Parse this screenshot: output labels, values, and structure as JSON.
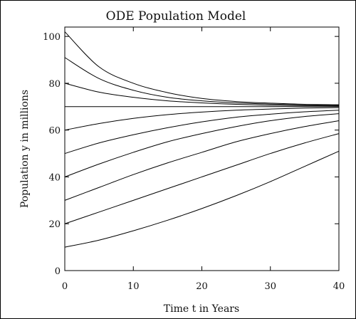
{
  "chart_data": {
    "type": "line",
    "title": "ODE Population Model",
    "xlabel": "Time t in Years",
    "ylabel": "Population y in millions",
    "xlim": [
      0,
      40
    ],
    "ylim": [
      0,
      104
    ],
    "x_ticks": [
      0,
      10,
      20,
      30,
      40
    ],
    "y_ticks": [
      0,
      20,
      40,
      60,
      80,
      100
    ],
    "grid": false,
    "line_color": "#000000",
    "x": [
      0,
      5,
      10,
      15,
      20,
      25,
      30,
      35,
      40
    ],
    "series": [
      {
        "values": [
          102,
          87,
          80,
          76,
          73.5,
          72.2,
          71.5,
          71.0,
          70.8
        ]
      },
      {
        "values": [
          91,
          82,
          77,
          74,
          72.5,
          71.6,
          71.1,
          70.8,
          70.6
        ]
      },
      {
        "values": [
          80,
          76.2,
          74,
          72.5,
          71.6,
          71.0,
          70.6,
          70.4,
          70.3
        ]
      },
      {
        "values": [
          70,
          70,
          70,
          70,
          70,
          70,
          70,
          70,
          70
        ]
      },
      {
        "values": [
          60,
          62.8,
          65,
          66.6,
          67.7,
          68.5,
          69.0,
          69.4,
          69.6
        ]
      },
      {
        "values": [
          50,
          54.5,
          58,
          61,
          63.5,
          65.5,
          66.8,
          67.8,
          68.5
        ]
      },
      {
        "values": [
          40,
          45.5,
          50.5,
          55,
          58.5,
          61.5,
          64,
          65.8,
          67
        ]
      },
      {
        "values": [
          30,
          35.5,
          41,
          46,
          50.5,
          55,
          58.5,
          61.5,
          64
        ]
      },
      {
        "values": [
          20,
          25,
          30,
          35,
          40,
          45,
          50,
          54.5,
          58.5
        ]
      },
      {
        "values": [
          10,
          13,
          17,
          21.5,
          26.5,
          32,
          38,
          44.5,
          51
        ]
      }
    ]
  }
}
